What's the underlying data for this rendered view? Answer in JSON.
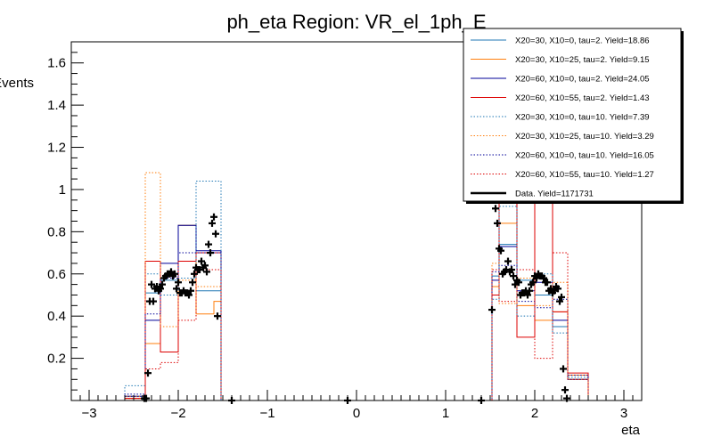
{
  "chart_data": {
    "type": "line",
    "title": "ph_eta Region: VR_el_1ph_E",
    "xlabel": "eta",
    "ylabel": "Events",
    "xlim": [
      -3.2,
      3.2
    ],
    "ylim": [
      0,
      1.7
    ],
    "x_ticks": [
      -3,
      -2,
      -1,
      0,
      1,
      2,
      3
    ],
    "x_tick_labels": [
      "−3",
      "−2",
      "−1",
      "0",
      "1",
      "2",
      "3"
    ],
    "y_ticks": [
      0.2,
      0.4,
      0.6,
      0.8,
      1.0,
      1.2,
      1.4,
      1.6
    ],
    "y_tick_labels": [
      "0.2",
      "0.4",
      "0.6",
      "0.8",
      "1",
      "1.2",
      "1.4",
      "1.6"
    ],
    "grid": false,
    "legend_position": "top-right",
    "bin_edges": [
      -3.2,
      -2.9,
      -2.6,
      -2.37,
      -2.2,
      -2.0,
      -1.8,
      -1.6,
      -1.52,
      -1.37,
      1.37,
      1.52,
      1.6,
      1.8,
      2.0,
      2.2,
      2.37,
      2.6,
      2.9,
      3.2
    ],
    "series": [
      {
        "name": "X20=30, X10=0, tau=2. Yield=18.86",
        "color": "#1f77b4",
        "dash": false,
        "values": [
          0,
          0,
          0.02,
          0.51,
          0.57,
          0.83,
          0.52,
          0.52,
          0,
          0,
          0,
          0.59,
          0.74,
          0.57,
          0.5,
          0.35,
          0.1,
          0,
          0
        ]
      },
      {
        "name": "X20=30, X10=25, tau=2. Yield=9.15",
        "color": "#ff7f0e",
        "dash": false,
        "values": [
          0,
          0,
          0.01,
          0.27,
          0.23,
          0.83,
          0.41,
          0.47,
          0,
          0,
          0,
          0.54,
          0.84,
          0.45,
          0.38,
          0.42,
          0.12,
          0,
          0
        ]
      },
      {
        "name": "X20=60, X10=0, tau=2. Yield=24.05",
        "color": "#000099",
        "dash": false,
        "values": [
          0,
          0,
          0.02,
          0.38,
          0.65,
          0.83,
          0.71,
          0.71,
          0,
          0,
          0,
          0.57,
          0.73,
          0.52,
          0.56,
          0.38,
          0.1,
          0,
          0
        ]
      },
      {
        "name": "X20=60, X10=55, tau=2. Yield=1.43",
        "color": "#dd0000",
        "dash": false,
        "values": [
          0,
          0,
          0.01,
          0.66,
          0.23,
          0.66,
          0.7,
          0.7,
          0,
          0,
          0,
          0.5,
          1.2,
          0.3,
          0.95,
          0.42,
          0.13,
          0,
          0
        ]
      },
      {
        "name": "X20=30, X10=0, tau=10. Yield=7.39",
        "color": "#1f77b4",
        "dash": true,
        "values": [
          0,
          0,
          0.07,
          0.6,
          0.5,
          0.58,
          1.04,
          1.04,
          0,
          0,
          0,
          0.48,
          0.92,
          0.4,
          0.6,
          0.32,
          0.11,
          0,
          0
        ]
      },
      {
        "name": "X20=30, X10=25, tau=10. Yield=3.29",
        "color": "#ff7f0e",
        "dash": true,
        "values": [
          0,
          0,
          0.02,
          1.08,
          0.35,
          0.57,
          0.54,
          0.54,
          0,
          0,
          0,
          0.65,
          0.46,
          0.58,
          0.45,
          0.56,
          0.1,
          0,
          0
        ]
      },
      {
        "name": "X20=60, X10=0, tau=10. Yield=16.05",
        "color": "#000099",
        "dash": true,
        "values": [
          0,
          0,
          0.03,
          0.41,
          0.58,
          0.7,
          0.7,
          0.7,
          0,
          0,
          0,
          0.61,
          0.64,
          0.47,
          0.44,
          0.48,
          0.12,
          0,
          0
        ]
      },
      {
        "name": "X20=60, X10=55, tau=10. Yield=1.27",
        "color": "#dd0000",
        "dash": true,
        "values": [
          0,
          0,
          0.01,
          0.15,
          0.18,
          0.38,
          0.62,
          0.62,
          0,
          0,
          0,
          0.62,
          0.47,
          0.62,
          0.2,
          0.7,
          0.1,
          0,
          0
        ]
      }
    ],
    "data_series": {
      "name": "Data. Yield=1171731",
      "color": "#000000",
      "points": [
        [
          -2.38,
          0.01
        ],
        [
          -2.36,
          0.01
        ],
        [
          -2.34,
          0.13
        ],
        [
          -2.32,
          0.47
        ],
        [
          -2.3,
          0.55
        ],
        [
          -2.28,
          0.47
        ],
        [
          -2.26,
          0.53
        ],
        [
          -2.24,
          0.54
        ],
        [
          -2.22,
          0.52
        ],
        [
          -2.2,
          0.53
        ],
        [
          -2.18,
          0.55
        ],
        [
          -2.16,
          0.58
        ],
        [
          -2.14,
          0.59
        ],
        [
          -2.12,
          0.6
        ],
        [
          -2.1,
          0.6
        ],
        [
          -2.08,
          0.61
        ],
        [
          -2.06,
          0.59
        ],
        [
          -2.04,
          0.6
        ],
        [
          -2.02,
          0.53
        ],
        [
          -2.0,
          0.56
        ],
        [
          -1.98,
          0.51
        ],
        [
          -1.96,
          0.51
        ],
        [
          -1.94,
          0.52
        ],
        [
          -1.92,
          0.51
        ],
        [
          -1.9,
          0.51
        ],
        [
          -1.88,
          0.5
        ],
        [
          -1.86,
          0.52
        ],
        [
          -1.84,
          0.56
        ],
        [
          -1.82,
          0.6
        ],
        [
          -1.8,
          0.63
        ],
        [
          -1.78,
          0.62
        ],
        [
          -1.76,
          0.62
        ],
        [
          -1.74,
          0.66
        ],
        [
          -1.72,
          0.63
        ],
        [
          -1.7,
          0.64
        ],
        [
          -1.68,
          0.61
        ],
        [
          -1.66,
          0.74
        ],
        [
          -1.64,
          0.7
        ],
        [
          -1.62,
          0.84
        ],
        [
          -1.6,
          0.87
        ],
        [
          -1.58,
          0.79
        ],
        [
          -1.56,
          0.4
        ],
        [
          -1.4,
          0.0
        ],
        [
          -0.1,
          0.0
        ],
        [
          1.4,
          0.0
        ],
        [
          1.52,
          0.43
        ],
        [
          1.54,
          0.98
        ],
        [
          1.56,
          0.91
        ],
        [
          1.58,
          0.84
        ],
        [
          1.6,
          0.72
        ],
        [
          1.62,
          0.71
        ],
        [
          1.64,
          0.6
        ],
        [
          1.66,
          0.61
        ],
        [
          1.68,
          0.62
        ],
        [
          1.7,
          0.66
        ],
        [
          1.72,
          0.61
        ],
        [
          1.74,
          0.62
        ],
        [
          1.76,
          0.59
        ],
        [
          1.78,
          0.55
        ],
        [
          1.8,
          0.57
        ],
        [
          1.82,
          0.56
        ],
        [
          1.84,
          0.5
        ],
        [
          1.86,
          0.51
        ],
        [
          1.88,
          0.51
        ],
        [
          1.9,
          0.52
        ],
        [
          1.92,
          0.5
        ],
        [
          1.94,
          0.52
        ],
        [
          1.96,
          0.55
        ],
        [
          1.98,
          0.56
        ],
        [
          2.0,
          0.59
        ],
        [
          2.02,
          0.58
        ],
        [
          2.04,
          0.6
        ],
        [
          2.06,
          0.59
        ],
        [
          2.08,
          0.59
        ],
        [
          2.1,
          0.58
        ],
        [
          2.12,
          0.56
        ],
        [
          2.14,
          0.56
        ],
        [
          2.16,
          0.52
        ],
        [
          2.18,
          0.53
        ],
        [
          2.2,
          0.51
        ],
        [
          2.22,
          0.52
        ],
        [
          2.24,
          0.54
        ],
        [
          2.26,
          0.53
        ],
        [
          2.28,
          0.47
        ],
        [
          2.3,
          0.49
        ],
        [
          2.32,
          0.15
        ],
        [
          2.34,
          0.05
        ],
        [
          2.36,
          0.01
        ]
      ]
    }
  }
}
